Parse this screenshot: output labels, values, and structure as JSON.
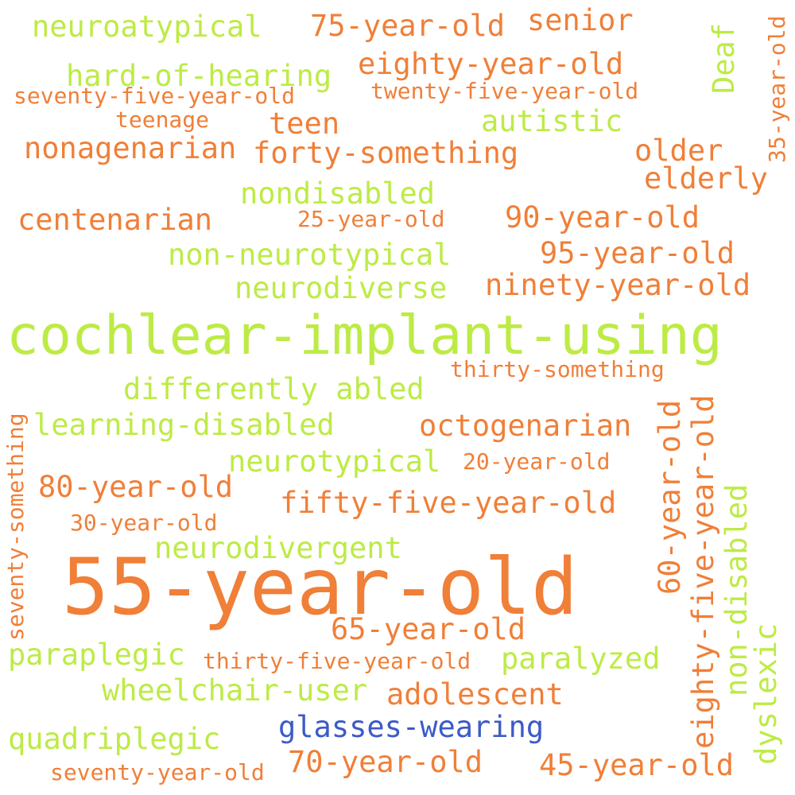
{
  "colors": {
    "orange": "#f07f38",
    "green": "#bdeb45",
    "blue": "#3c5ac8"
  },
  "words": {
    "w01": "cochlear-implant-using",
    "w02": "55-year-old",
    "w03": "neuroatypical",
    "w04": "75-year-old",
    "w05": "senior",
    "w06": "Deaf",
    "w07": "35-year-old",
    "w08": "hard-of-hearing",
    "w09": "eighty-year-old",
    "w10": "seventy-five-year-old",
    "w11": "twenty-five-year-old",
    "w12": "teenage",
    "w13": "teen",
    "w14": "autistic",
    "w15": "nonagenarian",
    "w16": "forty-something",
    "w17": "older",
    "w18": "elderly",
    "w19": "nondisabled",
    "w20": "centenarian",
    "w21": "25-year-old",
    "w22": "90-year-old",
    "w23": "non-neurotypical",
    "w24": "95-year-old",
    "w25": "neurodiverse",
    "w26": "ninety-year-old",
    "w27": "thirty-something",
    "w28": "differently abled",
    "w29": "60-year-old",
    "w30": "eighty-five-year-old",
    "w31": "seventy-something",
    "w32": "learning-disabled",
    "w33": "octogenarian",
    "w34": "neurotypical",
    "w35": "20-year-old",
    "w36": "non-disabled",
    "w37": "80-year-old",
    "w38": "fifty-five-year-old",
    "w39": "30-year-old",
    "w40": "neurodivergent",
    "w41": "65-year-old",
    "w42": "dyslexic",
    "w43": "paraplegic",
    "w44": "thirty-five-year-old",
    "w45": "paralyzed",
    "w46": "wheelchair-user",
    "w47": "adolescent",
    "w48": "glasses-wearing",
    "w49": "quadriplegic",
    "w50": "70-year-old",
    "w51": "45-year-old",
    "w52": "seventy-year-old"
  }
}
